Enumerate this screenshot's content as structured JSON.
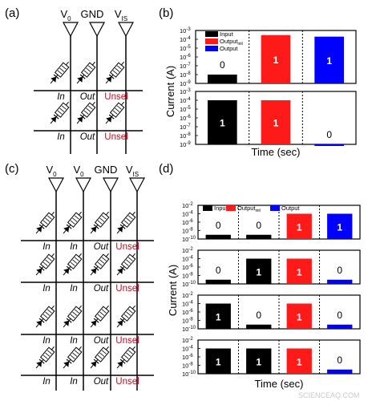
{
  "watermark": "SCIENCEAQ.COM",
  "colors": {
    "input": "#000000",
    "output_init": "#ff1a1a",
    "output": "#0000ff",
    "unsel": "#e0001b"
  },
  "panels": {
    "a": {
      "letter": "(a)",
      "columns": [
        {
          "main": "V",
          "sub": "0"
        },
        {
          "main": "GND",
          "sub": ""
        },
        {
          "main": "V",
          "sub": "IS"
        }
      ],
      "row_labels": [
        [
          "In",
          "Out",
          "Unsel"
        ],
        [
          "In",
          "Out",
          "Unsel"
        ]
      ]
    },
    "b": {
      "letter": "(b)",
      "y_label": "Current (A)",
      "x_label": "Time (sec)",
      "legend": [
        {
          "main": "Input",
          "sub": ""
        },
        {
          "main": "Output",
          "sub": "init"
        },
        {
          "main": "Output",
          "sub": ""
        }
      ],
      "tick_labels": [
        "10",
        "10",
        "10",
        "10",
        "10",
        "10",
        "10"
      ],
      "tick_exponents": [
        "-3",
        "-4",
        "-5",
        "-6",
        "-7",
        "-8",
        "-9"
      ]
    },
    "c": {
      "letter": "(c)",
      "columns": [
        {
          "main": "V",
          "sub": "0"
        },
        {
          "main": "V",
          "sub": "0"
        },
        {
          "main": "GND",
          "sub": ""
        },
        {
          "main": "V",
          "sub": "IS"
        }
      ],
      "row_labels": [
        [
          "In",
          "In",
          "Out",
          "Unsel"
        ],
        [
          "In",
          "In",
          "Out",
          "Unsel"
        ],
        [
          "In",
          "In",
          "Out",
          "Unsel"
        ],
        [
          "In",
          "In",
          "Out",
          "Unsel"
        ]
      ]
    },
    "d": {
      "letter": "(d)",
      "y_label": "Current (A)",
      "x_label": "Time (sec)",
      "legend": [
        {
          "main": "Input",
          "sub": ""
        },
        {
          "main": "Output",
          "sub": "init"
        },
        {
          "main": "Output",
          "sub": ""
        }
      ],
      "tick_labels": [
        "10",
        "10",
        "10",
        "10",
        "10"
      ],
      "tick_exponents": [
        "-2",
        "-4",
        "-6",
        "-8",
        "-10"
      ]
    }
  },
  "chart_data": [
    {
      "panel": "b",
      "type": "bar",
      "yscale": "log",
      "ylim": [
        1e-09,
        0.001
      ],
      "categories": [
        "Input",
        "Output_init",
        "Output"
      ],
      "subplots": [
        {
          "values": [
            1e-08,
            0.0003,
            0.0002
          ],
          "labels": [
            "0",
            "1",
            "1"
          ]
        },
        {
          "values": [
            0.0001,
            0.0001,
            1e-09
          ],
          "labels": [
            "1",
            "1",
            "0"
          ]
        }
      ]
    },
    {
      "panel": "d",
      "type": "bar",
      "yscale": "log",
      "ylim": [
        1e-10,
        0.01
      ],
      "categories": [
        "Input",
        "Input",
        "Output_init",
        "Output"
      ],
      "subplots": [
        {
          "values": [
            1e-09,
            1e-09,
            0.0001,
            0.0001
          ],
          "labels": [
            "0",
            "0",
            "1",
            "1"
          ]
        },
        {
          "values": [
            1e-09,
            0.0001,
            0.0001,
            1e-09
          ],
          "labels": [
            "0",
            "1",
            "1",
            "0"
          ]
        },
        {
          "values": [
            0.0001,
            1e-09,
            0.0001,
            1e-09
          ],
          "labels": [
            "1",
            "0",
            "1",
            "0"
          ]
        },
        {
          "values": [
            0.0001,
            0.0001,
            0.0001,
            1e-09
          ],
          "labels": [
            "1",
            "1",
            "1",
            "0"
          ]
        }
      ]
    }
  ]
}
